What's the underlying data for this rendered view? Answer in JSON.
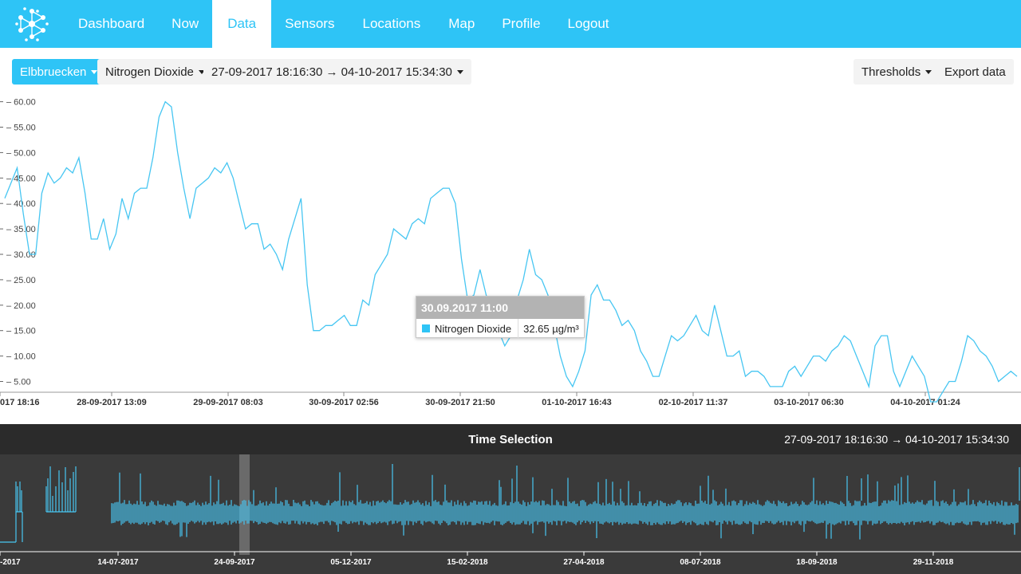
{
  "nav": {
    "items": [
      {
        "label": "Dashboard"
      },
      {
        "label": "Now"
      },
      {
        "label": "Data",
        "active": true
      },
      {
        "label": "Sensors"
      },
      {
        "label": "Locations"
      },
      {
        "label": "Map"
      },
      {
        "label": "Profile"
      },
      {
        "label": "Logout"
      }
    ]
  },
  "toolbar": {
    "location": "Elbbruecken",
    "pollutant": "Nitrogen Dioxide",
    "date_range": "27-09-2017 18:16:30 → 04-10-2017 15:34:30",
    "thresholds": "Thresholds",
    "export": "Export data"
  },
  "tooltip": {
    "title": "30.09.2017 11:00",
    "series": "Nitrogen Dioxide",
    "value": "32.65 µg/m³"
  },
  "time_selection": {
    "title": "Time Selection",
    "range": "27-09-2017 18:16:30 → 04-10-2017 15:34:30"
  },
  "colors": {
    "accent": "#2ec4f6",
    "line": "#47c6f2",
    "panel": "#3a3a3a"
  },
  "chart_data": [
    {
      "type": "line",
      "series": [
        {
          "name": "Nitrogen Dioxide",
          "unit": "µg/m³"
        }
      ],
      "y_ticks": [
        "60.00",
        "55.00",
        "50.00",
        "45.00",
        "40.00",
        "35.00",
        "30.00",
        "25.00",
        "20.00",
        "15.00",
        "10.00",
        "5.00"
      ],
      "ylim": [
        0,
        62
      ],
      "x_ticks": [
        "017 18:16",
        "28-09-2017 13:09",
        "29-09-2017 08:03",
        "30-09-2017 02:56",
        "30-09-2017 21:50",
        "01-10-2017 16:43",
        "02-10-2017 11:37",
        "03-10-2017 06:30",
        "04-10-2017 01:24"
      ],
      "values": [
        41,
        44,
        47,
        38,
        30,
        30,
        42,
        46,
        44,
        45,
        47,
        46,
        49,
        42,
        33,
        33,
        37,
        31,
        34,
        41,
        37,
        42,
        43,
        43,
        49,
        57,
        60,
        59,
        50,
        43,
        37,
        43,
        44,
        45,
        47,
        46,
        48,
        45,
        40,
        35,
        36,
        36,
        31,
        32,
        30,
        27,
        33,
        37,
        41,
        24,
        15,
        15,
        16,
        16,
        17,
        18,
        16,
        16,
        21,
        20,
        26,
        28,
        30,
        35,
        34,
        33,
        36,
        37,
        36,
        41,
        42,
        43,
        43,
        40,
        29,
        21,
        22,
        27,
        22,
        17,
        15,
        12,
        14,
        21,
        25,
        31,
        26,
        25,
        22,
        16,
        10,
        6,
        4,
        7,
        11,
        22,
        24,
        21,
        21,
        19,
        16,
        17,
        15,
        11,
        9,
        6,
        6,
        10,
        14,
        13,
        14,
        16,
        18,
        15,
        14,
        20,
        15,
        10,
        10,
        11,
        6,
        7,
        7,
        6,
        4,
        4,
        4,
        7,
        8,
        6,
        8,
        10,
        10,
        9,
        11,
        12,
        14,
        13,
        10,
        7,
        4,
        12,
        14,
        14,
        7,
        4,
        7,
        10,
        8,
        6,
        1,
        1,
        3,
        5,
        5,
        9,
        14,
        13,
        11,
        10,
        8,
        5,
        6,
        7,
        6
      ]
    },
    {
      "type": "line",
      "title": "Time Selection",
      "x_ticks": [
        "-2017",
        "14-07-2017",
        "24-09-2017",
        "05-12-2017",
        "15-02-2018",
        "27-04-2018",
        "08-07-2018",
        "18-09-2018",
        "29-11-2018"
      ]
    }
  ]
}
